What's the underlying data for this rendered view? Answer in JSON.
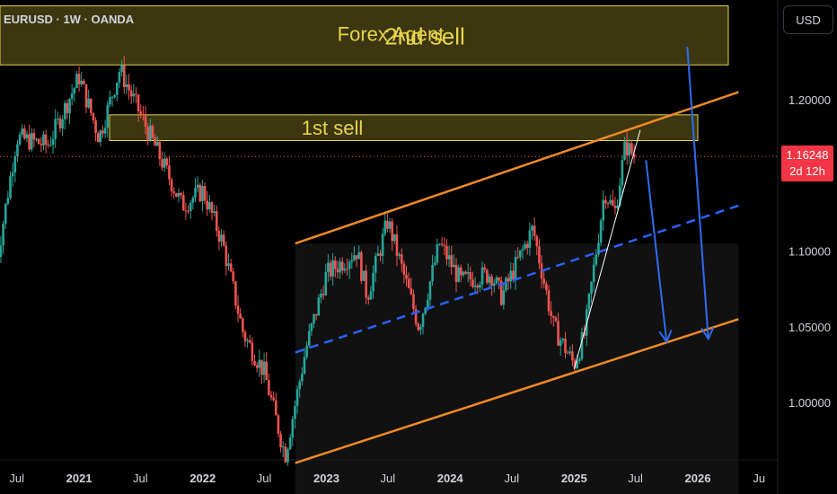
{
  "header": {
    "symbol_line": "EURUSD · 1W · OANDA"
  },
  "currency_button": {
    "label": "USD"
  },
  "current_price": {
    "price": "1.16248",
    "countdown": "2d 12h",
    "color": "#f23645"
  },
  "annotations": {
    "zone_top_label_a": "Forex Agent",
    "zone_top_label_b": "2nd sell",
    "zone_mid_label": "1st sell"
  },
  "colors": {
    "background": "#000000",
    "zone_fill": "#d8c53a",
    "zone_border": "#e8d44d",
    "channel_line": "#f08a24",
    "midline": "#2962ff",
    "arrow": "#2f6cf0",
    "up_candle": "#26a69a",
    "down_candle": "#ef5350",
    "trend_line": "#ffffff"
  },
  "chart_data": {
    "type": "candlestick",
    "symbol": "EURUSD",
    "interval": "1W",
    "ylim": [
      0.975,
      1.255
    ],
    "y_ticks": [
      "1.20000",
      "1.15000",
      "1.10000",
      "1.05000",
      "1.00000"
    ],
    "y_tick_values": [
      1.2,
      1.15,
      1.1,
      1.05,
      1.0
    ],
    "x_ticks": [
      "Jul",
      "2021",
      "Jul",
      "2022",
      "Jul",
      "2023",
      "Jul",
      "2024",
      "Jul",
      "2025",
      "Jul",
      "2026",
      "Ju"
    ],
    "x_tick_dates": [
      "2020-07",
      "2021-01",
      "2021-07",
      "2022-01",
      "2022-07",
      "2023-01",
      "2023-07",
      "2024-01",
      "2024-07",
      "2025-01",
      "2025-07",
      "2026-01",
      "2026-07"
    ],
    "bold_x_ticks": [
      "2021",
      "2022",
      "2023",
      "2024",
      "2025",
      "2026"
    ],
    "price_path": [
      [
        "2020-05",
        1.09
      ],
      [
        "2020-07",
        1.175
      ],
      [
        "2020-10",
        1.17
      ],
      [
        "2021-01",
        1.215
      ],
      [
        "2021-03",
        1.175
      ],
      [
        "2021-05",
        1.22
      ],
      [
        "2021-08",
        1.175
      ],
      [
        "2021-11",
        1.13
      ],
      [
        "2022-01",
        1.14
      ],
      [
        "2022-03",
        1.105
      ],
      [
        "2022-05",
        1.045
      ],
      [
        "2022-07",
        1.02
      ],
      [
        "2022-09",
        0.965
      ],
      [
        "2022-11",
        1.035
      ],
      [
        "2023-01",
        1.085
      ],
      [
        "2023-04",
        1.1
      ],
      [
        "2023-05",
        1.07
      ],
      [
        "2023-07",
        1.12
      ],
      [
        "2023-10",
        1.05
      ],
      [
        "2023-12",
        1.105
      ],
      [
        "2024-02",
        1.08
      ],
      [
        "2024-05",
        1.085
      ],
      [
        "2024-06",
        1.07
      ],
      [
        "2024-09",
        1.115
      ],
      [
        "2024-11",
        1.05
      ],
      [
        "2025-01",
        1.025
      ],
      [
        "2025-02",
        1.045
      ],
      [
        "2025-04",
        1.14
      ],
      [
        "2025-05",
        1.125
      ],
      [
        "2025-06",
        1.17
      ],
      [
        "2025-07",
        1.162
      ]
    ],
    "zones": [
      {
        "label": "2nd sell / Forex Agent",
        "from": "2020-04",
        "to": "2026-04",
        "y_low": 1.223,
        "y_high": 1.262
      },
      {
        "label": "1st sell",
        "from": "2021-04",
        "to": "2026-01",
        "y_low": 1.173,
        "y_high": 1.19
      }
    ],
    "channel": {
      "upper": [
        [
          "2022-10",
          1.105
        ],
        [
          "2026-05",
          1.205
        ]
      ],
      "lower": [
        [
          "2022-10",
          0.96
        ],
        [
          "2026-05",
          1.055
        ]
      ],
      "mid": [
        [
          "2022-10",
          1.033
        ],
        [
          "2026-05",
          1.13
        ]
      ]
    },
    "arrows": [
      {
        "from": [
          "2025-08",
          1.16
        ],
        "to": [
          "2025-10",
          1.04
        ]
      },
      {
        "from": [
          "2025-12",
          1.235
        ],
        "to": [
          "2026-02",
          1.042
        ]
      }
    ]
  }
}
